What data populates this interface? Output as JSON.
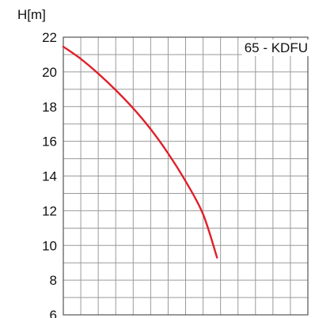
{
  "chart_data": {
    "type": "line",
    "ylabel": "H[m]",
    "ylim": [
      6,
      22
    ],
    "yticks": [
      22,
      20,
      18,
      16,
      14,
      12,
      10,
      8,
      6
    ],
    "grid": true,
    "x_gridlines": 14,
    "series": [
      {
        "name": "65 - KDFU",
        "color": "#e0202a",
        "points": [
          [
            0,
            21.45
          ],
          [
            1,
            20.75
          ],
          [
            2,
            19.9
          ],
          [
            3,
            18.95
          ],
          [
            4,
            17.9
          ],
          [
            5,
            16.7
          ],
          [
            6,
            15.3
          ],
          [
            7,
            13.7
          ],
          [
            8,
            11.8
          ],
          [
            8.8,
            9.3
          ]
        ]
      }
    ]
  }
}
